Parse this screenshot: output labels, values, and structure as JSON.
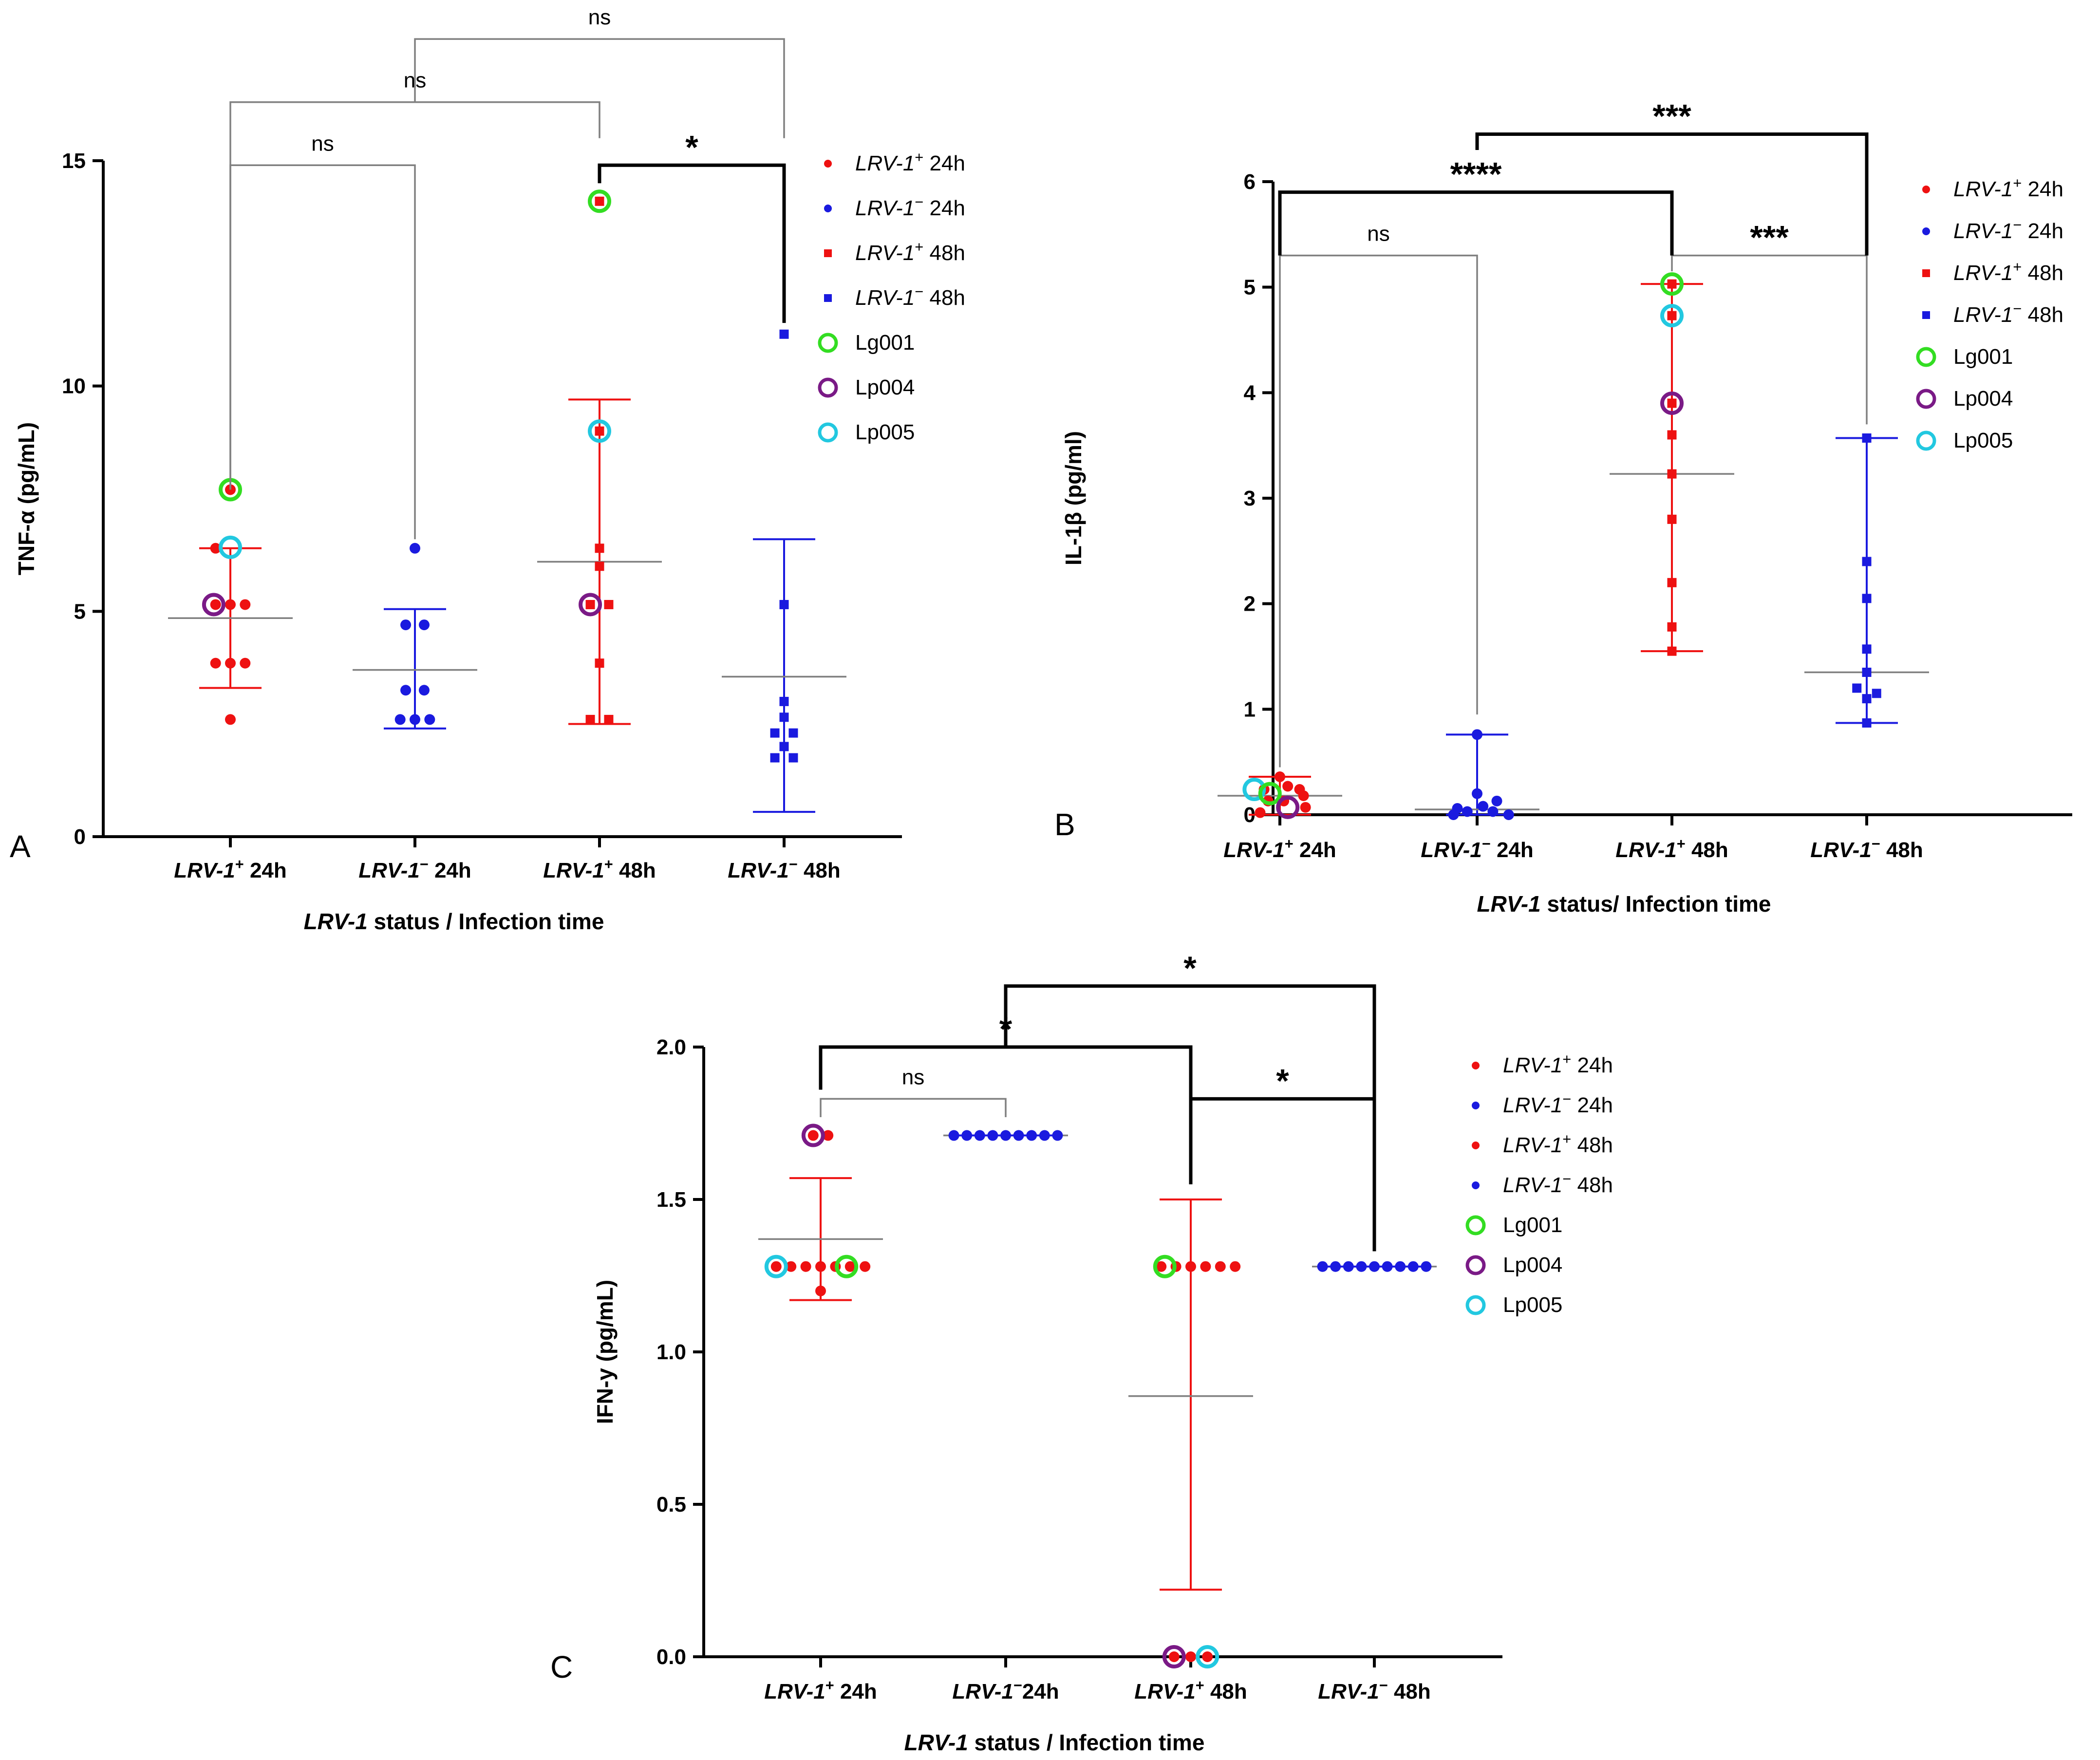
{
  "colors": {
    "lrv_pos": "#ee1111",
    "lrv_neg": "#1a1adf",
    "lg001": "#33dd22",
    "lp004": "#7a1a86",
    "lp005": "#22c8e0",
    "bracket_thin": "#808080",
    "bracket_bold": "#000000"
  },
  "legend_icons": [
    "dot",
    "dot",
    "square",
    "square",
    "ring",
    "ring",
    "ring"
  ],
  "chart_data": [
    {
      "panel": "A",
      "type": "scatter",
      "categories": [
        {
          "italic": "LRV-1",
          "sup": "+",
          "rest": " 24h"
        },
        {
          "italic": "LRV-1",
          "sup": "−",
          "rest": " 24h"
        },
        {
          "italic": "LRV-1",
          "sup": "+",
          "rest": " 48h"
        },
        {
          "italic": "LRV-1",
          "sup": "−",
          "rest": " 48h"
        }
      ],
      "xlabel": {
        "italic": "LRV-1",
        "rest": " status  / Infection time"
      },
      "ylabel": "TNF-α (pg/mL)",
      "ylim": [
        0,
        15
      ],
      "yticks": [
        0,
        5,
        10,
        15
      ],
      "legend": [
        {
          "italic": "LRV-1",
          "sup": "+",
          "rest": " 24h"
        },
        {
          "italic": "LRV-1",
          "sup": "−",
          "rest": "  24h"
        },
        {
          "italic": "LRV-1",
          "sup": "+",
          "rest": " 48h"
        },
        {
          "italic": "LRV-1",
          "sup": "−",
          "rest": "  48h"
        },
        {
          "text": "Lg001"
        },
        {
          "text": "Lp004"
        },
        {
          "text": "Lp005"
        }
      ],
      "series": [
        {
          "name": "LRV-1+ 24h",
          "color": "lrv_pos",
          "marker": "dot",
          "mean": 4.85,
          "err": [
            3.3,
            6.4
          ],
          "points": [
            [
              0,
              7.7
            ],
            [
              -0.08,
              6.4
            ],
            [
              -0.08,
              5.15
            ],
            [
              0,
              5.15
            ],
            [
              0.08,
              5.15
            ],
            [
              -0.08,
              3.85
            ],
            [
              0,
              3.85
            ],
            [
              0.08,
              3.85
            ],
            [
              0,
              2.6
            ]
          ]
        },
        {
          "name": "LRV-1− 24h",
          "color": "lrv_neg",
          "marker": "dot",
          "mean": 3.7,
          "err": [
            2.4,
            5.05
          ],
          "points": [
            [
              0,
              6.4
            ],
            [
              -0.05,
              4.7
            ],
            [
              0.05,
              4.7
            ],
            [
              -0.05,
              3.25
            ],
            [
              0.05,
              3.25
            ],
            [
              -0.08,
              2.6
            ],
            [
              0,
              2.6
            ],
            [
              0.08,
              2.6
            ]
          ]
        },
        {
          "name": "LRV-1+ 48h",
          "color": "lrv_pos",
          "marker": "square",
          "mean": 6.1,
          "err": [
            2.5,
            9.7
          ],
          "points": [
            [
              0,
              14.1
            ],
            [
              0,
              9.0
            ],
            [
              0,
              6.4
            ],
            [
              0,
              6.0
            ],
            [
              -0.05,
              5.15
            ],
            [
              0.05,
              5.15
            ],
            [
              0,
              3.85
            ],
            [
              -0.05,
              2.6
            ],
            [
              0.05,
              2.6
            ]
          ]
        },
        {
          "name": "LRV-1− 48h",
          "color": "lrv_neg",
          "marker": "square",
          "mean": 3.55,
          "err": [
            0.55,
            6.6
          ],
          "points": [
            [
              0,
              11.15
            ],
            [
              0,
              5.15
            ],
            [
              0,
              3.0
            ],
            [
              0,
              2.65
            ],
            [
              -0.05,
              2.3
            ],
            [
              0.05,
              2.3
            ],
            [
              0,
              2.0
            ],
            [
              -0.05,
              1.75
            ],
            [
              0.05,
              1.75
            ]
          ]
        }
      ],
      "highlights": [
        {
          "strain": "Lg001",
          "color": "lg001",
          "cat": 0,
          "dx": 0,
          "y": 7.7
        },
        {
          "strain": "Lp005",
          "color": "lp005",
          "cat": 0,
          "dx": 0,
          "y": 6.42
        },
        {
          "strain": "Lp004",
          "color": "lp004",
          "cat": 0,
          "dx": -0.09,
          "y": 5.15
        },
        {
          "strain": "Lg001",
          "color": "lg001",
          "cat": 2,
          "dx": 0,
          "y": 14.1
        },
        {
          "strain": "Lp005",
          "color": "lp005",
          "cat": 2,
          "dx": 0,
          "y": 9.0
        },
        {
          "strain": "Lp004",
          "color": "lp004",
          "cat": 2,
          "dx": -0.05,
          "y": 5.15
        }
      ],
      "comparisons": [
        {
          "from": 0,
          "to": 1,
          "label": "ns",
          "style": "thin",
          "y_left": 7.7,
          "y_right": 6.6,
          "top": 14.9
        },
        {
          "from": 0,
          "to": 2,
          "label": "ns",
          "style": "thin",
          "y_left": 7.7,
          "y_right": 15.5,
          "top": 16.3
        },
        {
          "from": 1,
          "to": 3,
          "label": "ns",
          "style": "thin",
          "y_left": 16.3,
          "y_right": 15.5,
          "top": 17.7
        },
        {
          "from": 2,
          "to": 3,
          "label": "*",
          "style": "bold",
          "y_left": 14.5,
          "y_right": 11.4,
          "top": 14.9
        }
      ]
    },
    {
      "panel": "B",
      "type": "scatter",
      "categories": [
        {
          "italic": "LRV-1",
          "sup": "+",
          "rest": " 24h"
        },
        {
          "italic": "LRV-1",
          "sup": "−",
          "rest": " 24h"
        },
        {
          "italic": "LRV-1",
          "sup": "+",
          "rest": " 48h"
        },
        {
          "italic": "LRV-1",
          "sup": "−",
          "rest": " 48h"
        }
      ],
      "xlabel": {
        "italic": "LRV-1",
        "rest": " status/ Infection time"
      },
      "ylabel": "IL-1β (pg/ml)",
      "ylim": [
        0,
        6
      ],
      "yticks": [
        0,
        1,
        2,
        3,
        4,
        5,
        6
      ],
      "legend": [
        {
          "italic": "LRV-1",
          "sup": "+",
          "rest": " 24h"
        },
        {
          "italic": "LRV-1",
          "sup": "−",
          "rest": "  24h"
        },
        {
          "italic": "LRV-1",
          "sup": "+",
          "rest": " 48h"
        },
        {
          "italic": "LRV-1",
          "sup": "−",
          "rest": "  48h"
        },
        {
          "text": "Lg001"
        },
        {
          "text": "Lp004"
        },
        {
          "text": "Lp005"
        }
      ],
      "series": [
        {
          "name": "LRV-1+ 24h",
          "color": "lrv_pos",
          "marker": "dot",
          "mean": 0.18,
          "err": [
            0.0,
            0.36
          ],
          "points": [
            [
              0,
              0.36
            ],
            [
              -0.08,
              0.24
            ],
            [
              0.04,
              0.27
            ],
            [
              0.1,
              0.24
            ],
            [
              -0.06,
              0.13
            ],
            [
              0.12,
              0.18
            ],
            [
              0.02,
              0.13
            ],
            [
              -0.1,
              0.02
            ],
            [
              0.13,
              0.07
            ]
          ]
        },
        {
          "name": "LRV-1− 24h",
          "color": "lrv_neg",
          "marker": "dot",
          "mean": 0.05,
          "err": [
            0.0,
            0.76
          ],
          "points": [
            [
              0,
              0.76
            ],
            [
              0,
              0.2
            ],
            [
              0.1,
              0.13
            ],
            [
              -0.1,
              0.06
            ],
            [
              0.03,
              0.08
            ],
            [
              -0.05,
              0.03
            ],
            [
              0.08,
              0.03
            ],
            [
              -0.12,
              0.0
            ],
            [
              0.16,
              0.0
            ]
          ]
        },
        {
          "name": "LRV-1+ 48h",
          "color": "lrv_pos",
          "marker": "square",
          "mean": 3.23,
          "err": [
            1.55,
            5.03
          ],
          "points": [
            [
              0,
              5.03
            ],
            [
              0,
              4.73
            ],
            [
              0,
              3.9
            ],
            [
              0,
              3.6
            ],
            [
              0,
              3.23
            ],
            [
              0,
              2.8
            ],
            [
              0,
              2.2
            ],
            [
              0,
              1.78
            ],
            [
              0,
              1.55
            ]
          ]
        },
        {
          "name": "LRV-1− 48h",
          "color": "lrv_neg",
          "marker": "square",
          "mean": 1.35,
          "err": [
            0.87,
            3.57
          ],
          "points": [
            [
              0,
              3.57
            ],
            [
              0,
              2.4
            ],
            [
              0,
              2.05
            ],
            [
              0,
              1.57
            ],
            [
              0,
              1.35
            ],
            [
              -0.05,
              1.2
            ],
            [
              0.05,
              1.15
            ],
            [
              0,
              1.1
            ],
            [
              0,
              0.87
            ]
          ]
        }
      ],
      "highlights": [
        {
          "strain": "Lp005",
          "color": "lp005",
          "cat": 0,
          "dx": -0.13,
          "y": 0.24
        },
        {
          "strain": "Lg001",
          "color": "lg001",
          "cat": 0,
          "dx": -0.05,
          "y": 0.2
        },
        {
          "strain": "Lp004",
          "color": "lp004",
          "cat": 0,
          "dx": 0.04,
          "y": 0.07
        },
        {
          "strain": "Lg001",
          "color": "lg001",
          "cat": 2,
          "dx": 0,
          "y": 5.03
        },
        {
          "strain": "Lp005",
          "color": "lp005",
          "cat": 2,
          "dx": 0,
          "y": 4.73
        },
        {
          "strain": "Lp004",
          "color": "lp004",
          "cat": 2,
          "dx": 0,
          "y": 3.9
        }
      ],
      "comparisons": [
        {
          "from": 0,
          "to": 1,
          "label": "ns",
          "style": "thin",
          "y_left": 0.45,
          "y_right": 0.95,
          "top": 5.3
        },
        {
          "from": 2,
          "to": 3,
          "label": "***",
          "style": "thin",
          "y_left": 5.15,
          "y_right": 3.7,
          "top": 5.3
        },
        {
          "from": 0,
          "to": 2,
          "label": "****",
          "style": "bold",
          "y_left": 5.3,
          "y_right": 5.3,
          "top": 5.9
        },
        {
          "from": 1,
          "to": 3,
          "label": "***",
          "style": "bold",
          "y_left": 6.3,
          "y_right": 5.3,
          "top": 6.45
        }
      ]
    },
    {
      "panel": "C",
      "type": "scatter",
      "categories": [
        {
          "italic": "LRV-1",
          "sup": "+",
          "rest": " 24h"
        },
        {
          "italic": "LRV-1",
          "sup": "−",
          "rest": "24h"
        },
        {
          "italic": "LRV-1",
          "sup": "+",
          "rest": " 48h"
        },
        {
          "italic": "LRV-1",
          "sup": "−",
          "rest": " 48h"
        }
      ],
      "xlabel": {
        "italic": "LRV-1",
        "rest": " status / Infection time"
      },
      "ylabel": "IFN-y (pg/mL)",
      "ylim": [
        0,
        2.0
      ],
      "yticks": [
        0.0,
        0.5,
        1.0,
        1.5,
        2.0
      ],
      "ytick_labels": [
        "0.0",
        "0.5",
        "1.0",
        "1.5",
        "2.0"
      ],
      "legend": [
        {
          "italic": "LRV-1",
          "sup": "+",
          "rest": " 24h"
        },
        {
          "italic": "LRV-1",
          "sup": "−",
          "rest": "  24h"
        },
        {
          "italic": "LRV-1",
          "sup": "+",
          "rest": " 48h"
        },
        {
          "italic": "LRV-1",
          "sup": "−",
          "rest": "  48h"
        },
        {
          "text": "Lg001"
        },
        {
          "text": "Lp004"
        },
        {
          "text": "Lp005"
        }
      ],
      "series": [
        {
          "name": "LRV-1+ 24h",
          "color": "lrv_pos",
          "marker": "dot",
          "mean": 1.37,
          "err": [
            1.17,
            1.57
          ],
          "points": [
            [
              -0.04,
              1.71
            ],
            [
              0.04,
              1.71
            ],
            [
              -0.24,
              1.28
            ],
            [
              -0.16,
              1.28
            ],
            [
              -0.08,
              1.28
            ],
            [
              0,
              1.28
            ],
            [
              0.08,
              1.28
            ],
            [
              0.16,
              1.28
            ],
            [
              0.24,
              1.28
            ],
            [
              0,
              1.2
            ]
          ]
        },
        {
          "name": "LRV-1− 24h",
          "color": "lrv_neg",
          "marker": "dot",
          "mean": 1.71,
          "err": [
            1.71,
            1.71
          ],
          "points": [
            [
              -0.28,
              1.71
            ],
            [
              -0.21,
              1.71
            ],
            [
              -0.14,
              1.71
            ],
            [
              -0.07,
              1.71
            ],
            [
              0,
              1.71
            ],
            [
              0.07,
              1.71
            ],
            [
              0.14,
              1.71
            ],
            [
              0.21,
              1.71
            ],
            [
              0.28,
              1.71
            ]
          ]
        },
        {
          "name": "LRV-1+ 48h",
          "color": "lrv_pos",
          "marker": "dot",
          "mean": 0.855,
          "err": [
            0.22,
            1.5
          ],
          "points": [
            [
              -0.16,
              1.28
            ],
            [
              -0.08,
              1.28
            ],
            [
              0,
              1.28
            ],
            [
              0.08,
              1.28
            ],
            [
              0.16,
              1.28
            ],
            [
              0.24,
              1.28
            ],
            [
              -0.09,
              0.0
            ],
            [
              0,
              0.0
            ],
            [
              0.09,
              0.0
            ]
          ]
        },
        {
          "name": "LRV-1− 48h",
          "color": "lrv_neg",
          "marker": "dot",
          "mean": 1.28,
          "err": [
            1.28,
            1.28
          ],
          "points": [
            [
              -0.28,
              1.28
            ],
            [
              -0.21,
              1.28
            ],
            [
              -0.14,
              1.28
            ],
            [
              -0.07,
              1.28
            ],
            [
              0,
              1.28
            ],
            [
              0.07,
              1.28
            ],
            [
              0.14,
              1.28
            ],
            [
              0.21,
              1.28
            ],
            [
              0.28,
              1.28
            ]
          ]
        }
      ],
      "highlights": [
        {
          "strain": "Lp004",
          "color": "lp004",
          "cat": 0,
          "dx": -0.04,
          "y": 1.71
        },
        {
          "strain": "Lp005",
          "color": "lp005",
          "cat": 0,
          "dx": -0.24,
          "y": 1.28
        },
        {
          "strain": "Lg001",
          "color": "lg001",
          "cat": 0,
          "dx": 0.14,
          "y": 1.28
        },
        {
          "strain": "Lg001",
          "color": "lg001",
          "cat": 2,
          "dx": -0.14,
          "y": 1.28
        },
        {
          "strain": "Lp004",
          "color": "lp004",
          "cat": 2,
          "dx": -0.09,
          "y": 0.0
        },
        {
          "strain": "Lp005",
          "color": "lp005",
          "cat": 2,
          "dx": 0.09,
          "y": 0.0
        }
      ],
      "comparisons": [
        {
          "from": 0,
          "to": 1,
          "label": "ns",
          "style": "thin",
          "y_left": 1.77,
          "y_right": 1.77,
          "top": 1.83
        },
        {
          "from": 0,
          "to": 2,
          "label": "*",
          "style": "bold",
          "y_left": 1.86,
          "y_right": 1.55,
          "top": 2.0
        },
        {
          "from": 2,
          "to": 3,
          "label": "*",
          "style": "bold",
          "y_left": 1.55,
          "y_right": 1.33,
          "top": 1.83
        },
        {
          "from": 1,
          "to": 3,
          "label": "*",
          "style": "bold",
          "y_left": 2.0,
          "y_right": 1.83,
          "top": 2.2
        }
      ]
    }
  ]
}
